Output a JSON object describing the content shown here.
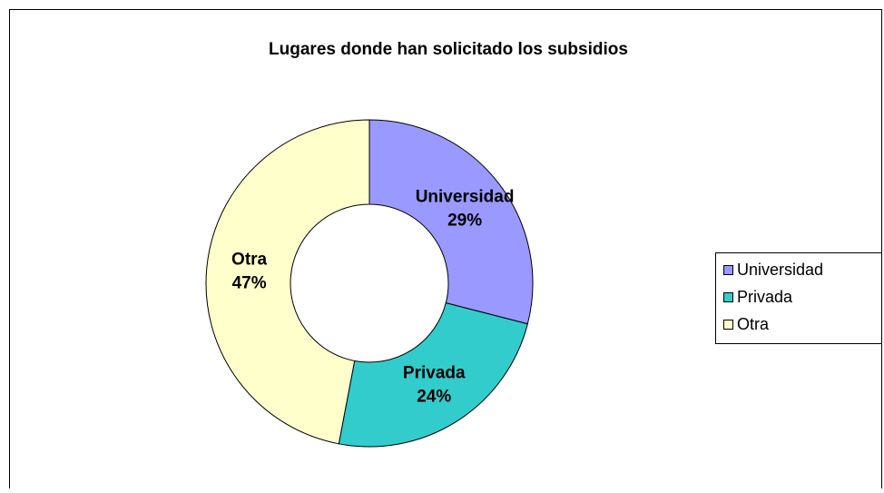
{
  "chart_data": {
    "type": "donut",
    "title": "Lugares donde han solicitado los subsidios",
    "categories": [
      "Universidad",
      "Privada",
      "Otra"
    ],
    "values": [
      29,
      24,
      47
    ],
    "value_labels": [
      "29%",
      "24%",
      "47%"
    ],
    "colors": [
      "#9999ff",
      "#33cccc",
      "#ffffcc"
    ],
    "legend": "right"
  }
}
